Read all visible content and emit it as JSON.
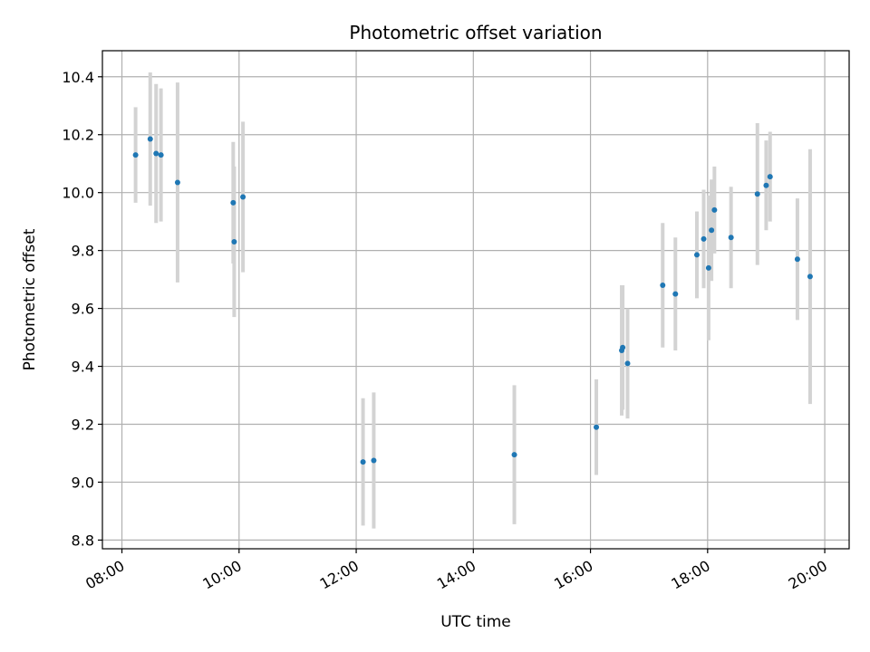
{
  "chart_data": {
    "type": "scatter",
    "title": "Photometric offset variation",
    "xlabel": "UTC time",
    "ylabel": "Photometric offset",
    "xlim": [
      "07:40",
      "20:25"
    ],
    "ylim": [
      8.77,
      10.49
    ],
    "x_ticks": [
      "08:00",
      "10:00",
      "12:00",
      "14:00",
      "16:00",
      "18:00",
      "20:00"
    ],
    "y_ticks": [
      "8.8",
      "9.0",
      "9.2",
      "9.4",
      "9.6",
      "9.8",
      "10.0",
      "10.2",
      "10.4"
    ],
    "grid": true,
    "point_color": "#1f77b4",
    "errorbar_color": "#d3d3d3",
    "series": [
      {
        "points": [
          {
            "x": "08:14",
            "y": 10.13,
            "err": 0.165
          },
          {
            "x": "08:29",
            "y": 10.185,
            "err": 0.23
          },
          {
            "x": "08:35",
            "y": 10.135,
            "err": 0.24
          },
          {
            "x": "08:40",
            "y": 10.13,
            "err": 0.23
          },
          {
            "x": "08:57",
            "y": 10.035,
            "err": 0.345
          },
          {
            "x": "09:54",
            "y": 9.965,
            "err": 0.21
          },
          {
            "x": "09:55",
            "y": 9.83,
            "err": 0.26
          },
          {
            "x": "10:04",
            "y": 9.985,
            "err": 0.26
          },
          {
            "x": "12:07",
            "y": 9.07,
            "err": 0.22
          },
          {
            "x": "12:18",
            "y": 9.075,
            "err": 0.235
          },
          {
            "x": "14:42",
            "y": 9.095,
            "err": 0.24
          },
          {
            "x": "16:06",
            "y": 9.19,
            "err": 0.165
          },
          {
            "x": "16:32",
            "y": 9.455,
            "err": 0.225
          },
          {
            "x": "16:33",
            "y": 9.465,
            "err": 0.215
          },
          {
            "x": "16:38",
            "y": 9.41,
            "err": 0.19
          },
          {
            "x": "17:14",
            "y": 9.68,
            "err": 0.215
          },
          {
            "x": "17:27",
            "y": 9.65,
            "err": 0.195
          },
          {
            "x": "17:49",
            "y": 9.785,
            "err": 0.15
          },
          {
            "x": "17:56",
            "y": 9.84,
            "err": 0.17
          },
          {
            "x": "18:01",
            "y": 9.74,
            "err": 0.25
          },
          {
            "x": "18:04",
            "y": 9.87,
            "err": 0.175
          },
          {
            "x": "18:07",
            "y": 9.94,
            "err": 0.15
          },
          {
            "x": "18:24",
            "y": 9.845,
            "err": 0.175
          },
          {
            "x": "18:51",
            "y": 9.995,
            "err": 0.245
          },
          {
            "x": "19:00",
            "y": 10.025,
            "err": 0.155
          },
          {
            "x": "19:04",
            "y": 10.055,
            "err": 0.155
          },
          {
            "x": "19:32",
            "y": 9.77,
            "err": 0.21
          },
          {
            "x": "19:45",
            "y": 9.71,
            "err": 0.44
          }
        ]
      }
    ]
  }
}
